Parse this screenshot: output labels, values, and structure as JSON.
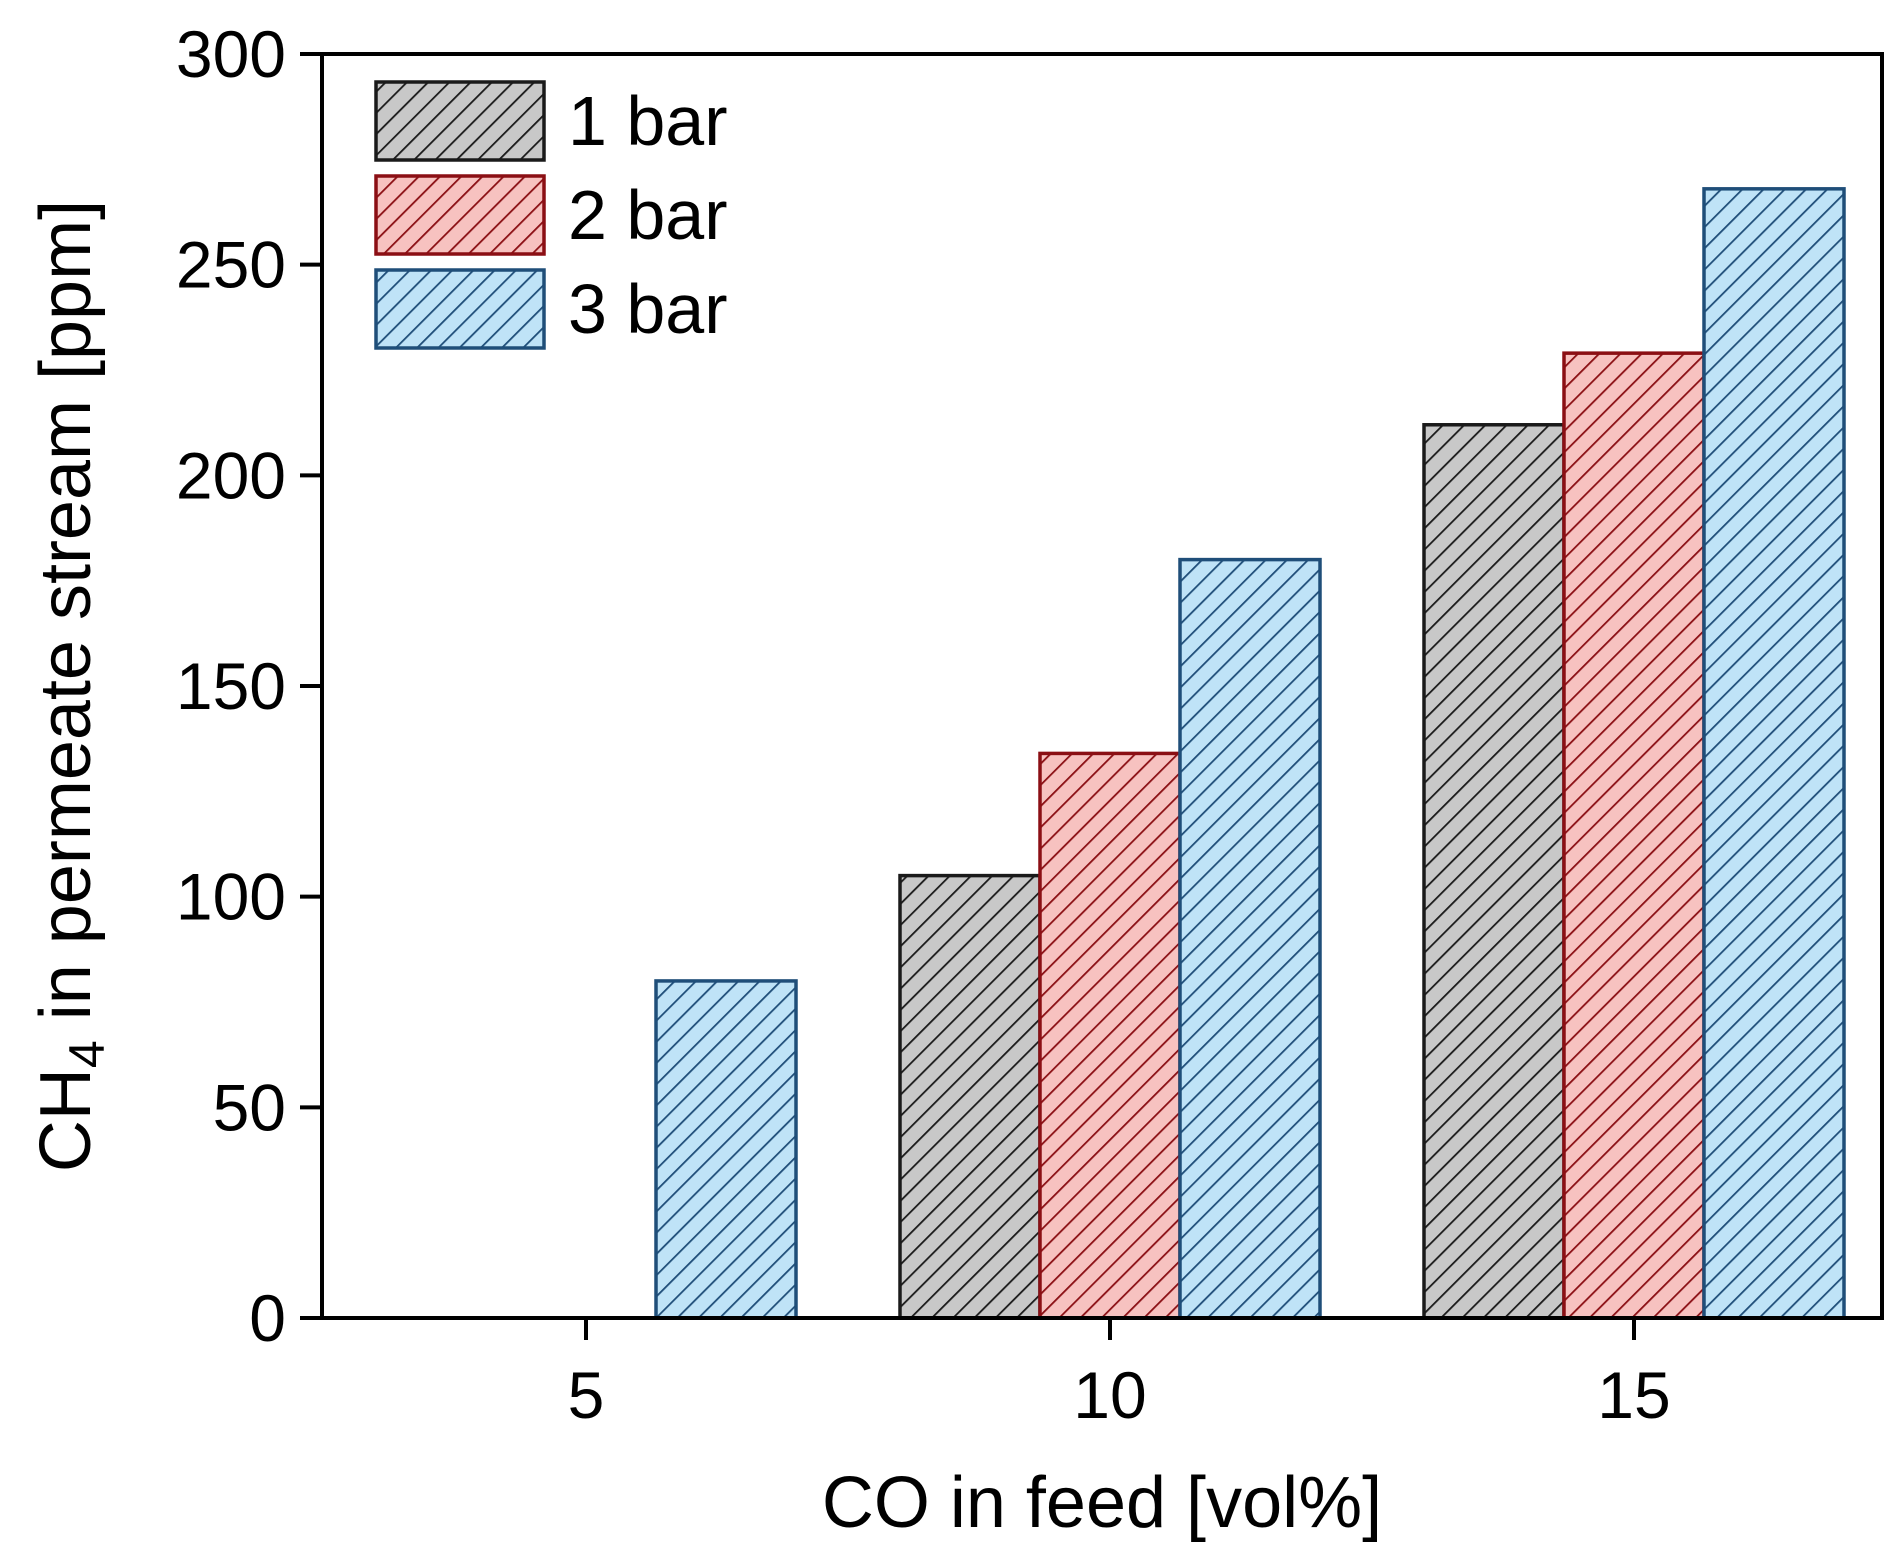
{
  "chart_data": {
    "type": "bar",
    "title": "",
    "xlabel": "CO in feed [vol%]",
    "ylabel": {
      "prefix": "CH",
      "subscript": "4",
      "suffix": " in permeate stream [ppm]"
    },
    "categories": [
      "5",
      "10",
      "15"
    ],
    "ylim": [
      0,
      300
    ],
    "yticks": [
      0,
      50,
      100,
      150,
      200,
      250,
      300
    ],
    "yticks_text": [
      "0",
      "50",
      "100",
      "150",
      "200",
      "250",
      "300"
    ],
    "grid": false,
    "legend_position": "top-left",
    "hatch": "diagonal",
    "series": [
      {
        "name": "1 bar",
        "values": [
          null,
          105,
          212
        ],
        "fill": "#c8c8c8",
        "stroke": "#1a1a1a"
      },
      {
        "name": "2 bar",
        "values": [
          null,
          134,
          229
        ],
        "fill": "#f7c2c0",
        "stroke": "#8b0f14"
      },
      {
        "name": "3 bar",
        "values": [
          80,
          180,
          268
        ],
        "fill": "#bfe3f7",
        "stroke": "#1f4e79"
      }
    ]
  }
}
